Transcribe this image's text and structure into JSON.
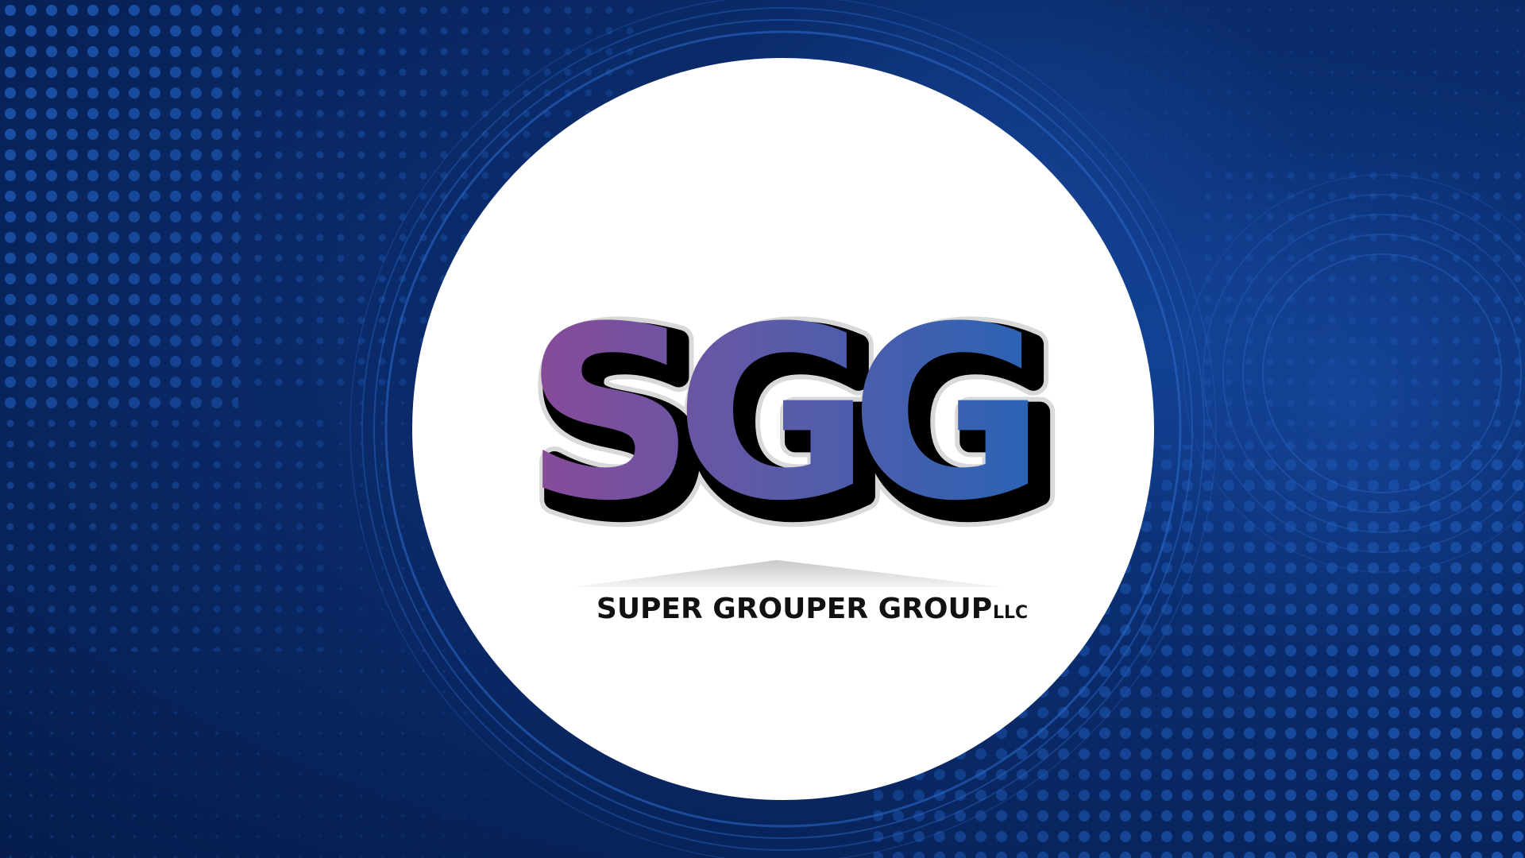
{
  "logo": {
    "mark_text": "SGG",
    "company_name": "SUPER GROUPER GROUP",
    "suffix": "LLC"
  },
  "colors": {
    "background_dark": "#061d4d",
    "background_mid": "#0a2b6b",
    "dot_color": "#1f5bb8",
    "circle_fill": "#ffffff",
    "mark_gradient_start": "#8a4a98",
    "mark_gradient_mid": "#5a5ba8",
    "mark_gradient_end": "#2c63b4",
    "mark_outline": "#000000",
    "text_color": "#111111"
  }
}
